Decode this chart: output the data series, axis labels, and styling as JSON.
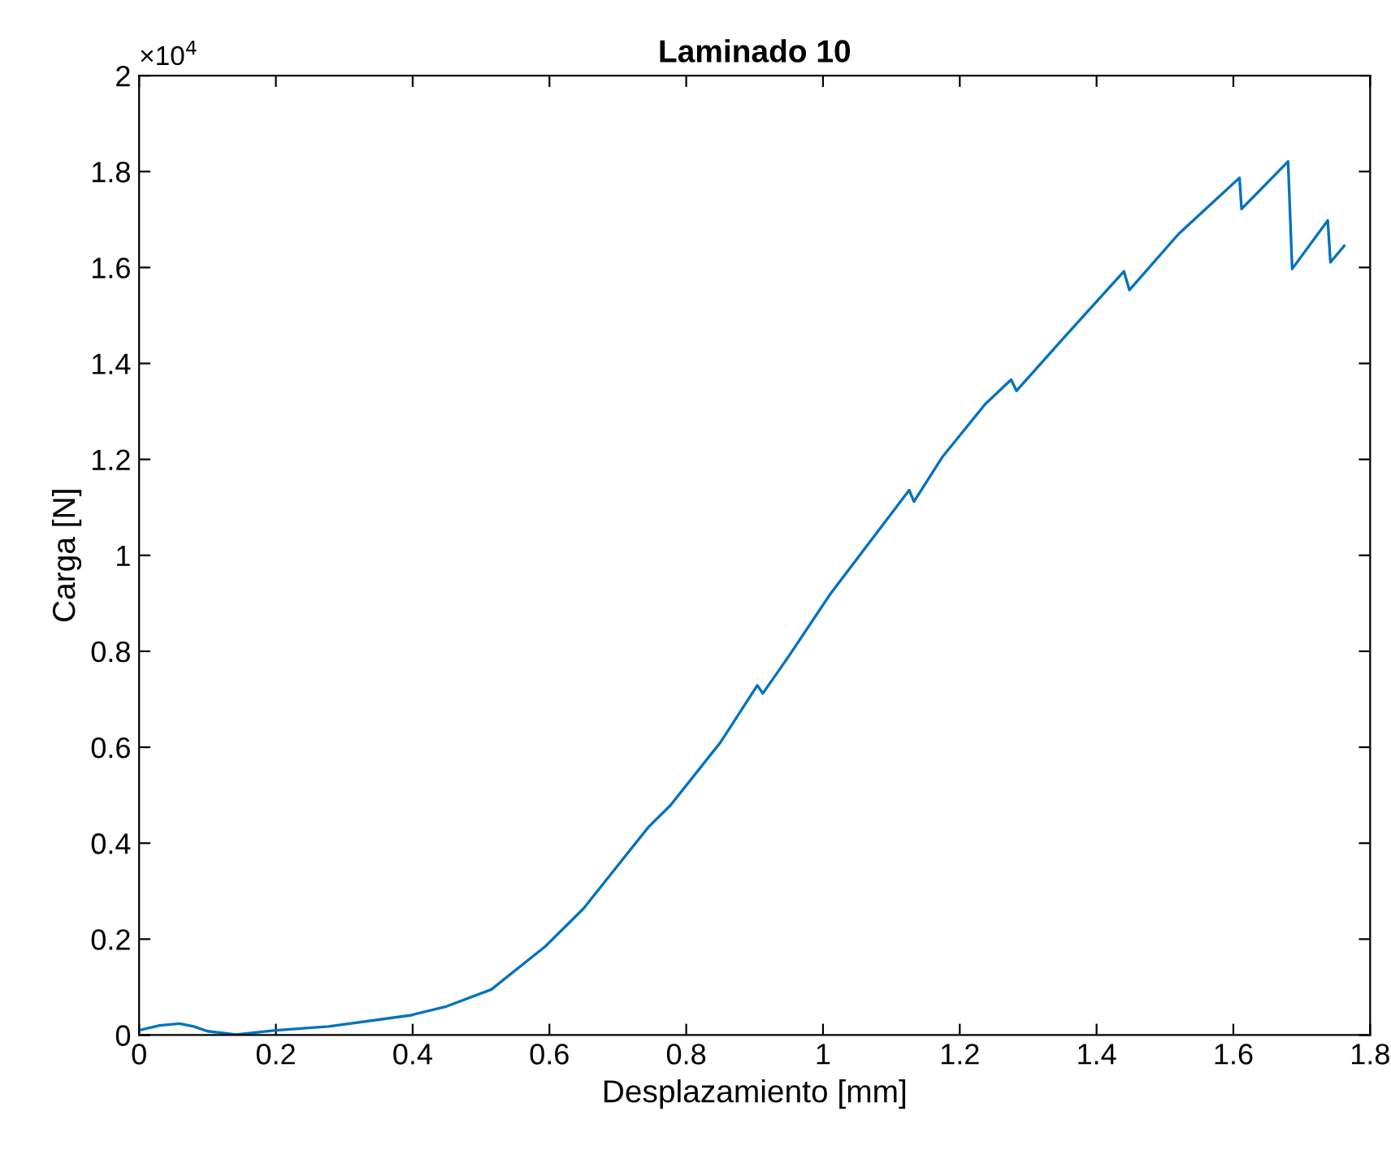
{
  "chart_data": {
    "type": "line",
    "title": "Laminado 10",
    "xlabel": "Desplazamiento [mm]",
    "ylabel": "Carga [N]",
    "annotations": [
      "×10$^{4}$"
    ],
    "series": [
      {
        "color": "#0072bd",
        "x": [
          0,
          0.03,
          0.059,
          0.08,
          0.1,
          0.142,
          0.2,
          0.277,
          0.396,
          0.45,
          0.515,
          0.594,
          0.65,
          0.745,
          0.777,
          0.85,
          0.904,
          0.912,
          0.95,
          1.011,
          1.126,
          1.133,
          1.174,
          1.237,
          1.275,
          1.283,
          1.35,
          1.44,
          1.448,
          1.52,
          1.609,
          1.612,
          1.68,
          1.686,
          1.738,
          1.742,
          1.762
        ],
        "values": [
          0.01,
          0.02,
          0.024,
          0.018,
          0.008,
          0.001,
          0.01,
          0.018,
          0.041,
          0.06,
          0.095,
          0.185,
          0.264,
          0.434,
          0.479,
          0.61,
          0.729,
          0.712,
          0.79,
          0.92,
          1.136,
          1.112,
          1.204,
          1.315,
          1.366,
          1.343,
          1.45,
          1.592,
          1.553,
          1.67,
          1.787,
          1.722,
          1.821,
          1.597,
          1.698,
          1.611,
          1.645
        ]
      }
    ],
    "xlim": [
      0,
      1.8
    ],
    "xticks": [
      0,
      0.2,
      0.4,
      0.6,
      0.8,
      1,
      1.2,
      1.4,
      1.6,
      1.8
    ],
    "ylim": [
      0,
      2
    ],
    "yticks": [
      0,
      0.2,
      0.4,
      0.6,
      0.8,
      1,
      1.2,
      1.4,
      1.6,
      1.8,
      2
    ],
    "grid": false,
    "marker": "none",
    "line_style": "solid"
  }
}
